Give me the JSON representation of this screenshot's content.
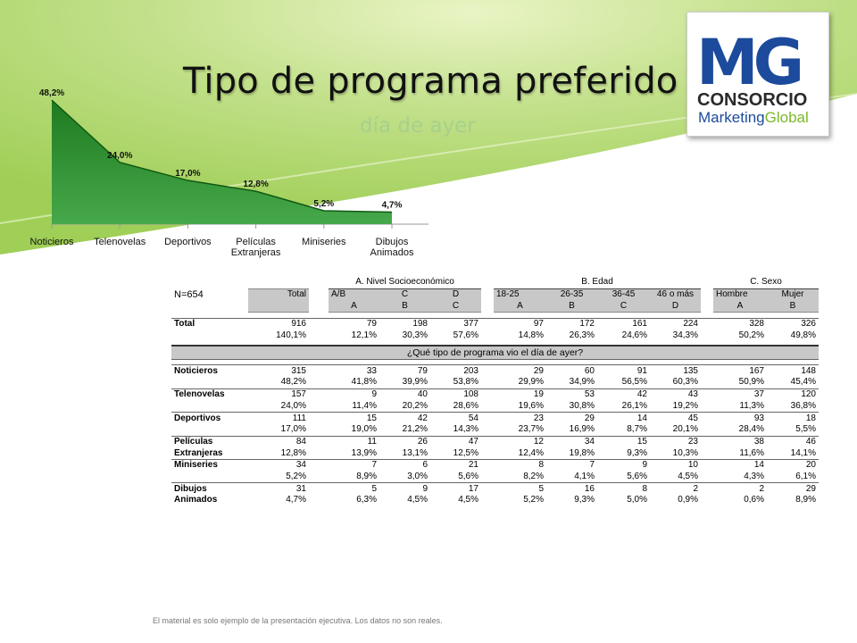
{
  "header": {
    "title": "Tipo de programa preferido",
    "subtitle": "día de ayer"
  },
  "logo": {
    "letters": "MG",
    "line1": "CONSORCIO",
    "line2a": "Marketing",
    "line2b": "Global",
    "colors": {
      "blue": "#1c4a9c",
      "green": "#7ab929",
      "dark": "#2a2a2a"
    }
  },
  "chart_data": {
    "type": "area",
    "categories": [
      "Noticieros",
      "Telenovelas",
      "Deportivos",
      "Películas Extranjeras",
      "Miniseries",
      "Dibujos Animados"
    ],
    "category_lines": [
      [
        "Noticieros"
      ],
      [
        "Telenovelas"
      ],
      [
        "Deportivos"
      ],
      [
        "Películas",
        "Extranjeras"
      ],
      [
        "Miniseries"
      ],
      [
        "Dibujos",
        "Animados"
      ]
    ],
    "values": [
      48.2,
      24.0,
      17.0,
      12.8,
      5.2,
      4.7
    ],
    "data_labels": [
      "48,2%",
      "24,0%",
      "17,0%",
      "12,8%",
      "5,2%",
      "4,7%"
    ],
    "title": "",
    "xlabel": "",
    "ylabel": "",
    "ylim": [
      0,
      50
    ],
    "grid": false,
    "colors": {
      "fill_dark": "#1f7a1f",
      "fill_light": "#46a84b",
      "axis": "#999999"
    }
  },
  "table": {
    "n_label": "N=654",
    "groups": [
      "A. Nivel Socioeconómico",
      "B. Edad",
      "C. Sexo"
    ],
    "col_headers": [
      "Total",
      "A/B",
      "C",
      "D",
      "18-25",
      "26-35",
      "36-45",
      "46 o más",
      "Hombre",
      "Mujer"
    ],
    "col_letters": [
      "",
      "A",
      "B",
      "C",
      "A",
      "B",
      "C",
      "D",
      "A",
      "B"
    ],
    "question": "¿Qué tipo de programa vio el día de ayer?",
    "total_row": {
      "label": "Total",
      "counts": [
        "916",
        "79",
        "198",
        "377",
        "97",
        "172",
        "161",
        "224",
        "328",
        "326"
      ],
      "pcts": [
        "140,1%",
        "12,1%",
        "30,3%",
        "57,6%",
        "14,8%",
        "26,3%",
        "24,6%",
        "34,3%",
        "50,2%",
        "49,8%"
      ]
    },
    "rows": [
      {
        "label1": "Noticieros",
        "label2": "",
        "counts": [
          "315",
          "33",
          "79",
          "203",
          "29",
          "60",
          "91",
          "135",
          "167",
          "148"
        ],
        "pcts": [
          "48,2%",
          "41,8%",
          "39,9%",
          "53,8%",
          "29,9%",
          "34,9%",
          "56,5%",
          "60,3%",
          "50,9%",
          "45,4%"
        ]
      },
      {
        "label1": "Telenovelas",
        "label2": "",
        "counts": [
          "157",
          "9",
          "40",
          "108",
          "19",
          "53",
          "42",
          "43",
          "37",
          "120"
        ],
        "pcts": [
          "24,0%",
          "11,4%",
          "20,2%",
          "28,6%",
          "19,6%",
          "30,8%",
          "26,1%",
          "19,2%",
          "11,3%",
          "36,8%"
        ]
      },
      {
        "label1": "Deportivos",
        "label2": "",
        "counts": [
          "111",
          "15",
          "42",
          "54",
          "23",
          "29",
          "14",
          "45",
          "93",
          "18"
        ],
        "pcts": [
          "17,0%",
          "19,0%",
          "21,2%",
          "14,3%",
          "23,7%",
          "16,9%",
          "8,7%",
          "20,1%",
          "28,4%",
          "5,5%"
        ]
      },
      {
        "label1": "Películas",
        "label2": "Extranjeras",
        "counts": [
          "84",
          "11",
          "26",
          "47",
          "12",
          "34",
          "15",
          "23",
          "38",
          "46"
        ],
        "pcts": [
          "12,8%",
          "13,9%",
          "13,1%",
          "12,5%",
          "12,4%",
          "19,8%",
          "9,3%",
          "10,3%",
          "11,6%",
          "14,1%"
        ]
      },
      {
        "label1": "Miniseries",
        "label2": "",
        "counts": [
          "34",
          "7",
          "6",
          "21",
          "8",
          "7",
          "9",
          "10",
          "14",
          "20"
        ],
        "pcts": [
          "5,2%",
          "8,9%",
          "3,0%",
          "5,6%",
          "8,2%",
          "4,1%",
          "5,6%",
          "4,5%",
          "4,3%",
          "6,1%"
        ]
      },
      {
        "label1": "Dibujos",
        "label2": "Animados",
        "counts": [
          "31",
          "5",
          "9",
          "17",
          "5",
          "16",
          "8",
          "2",
          "2",
          "29"
        ],
        "pcts": [
          "4,7%",
          "6,3%",
          "4,5%",
          "4,5%",
          "5,2%",
          "9,3%",
          "5,0%",
          "0,9%",
          "0,6%",
          "8,9%"
        ]
      }
    ]
  },
  "footer": "El material es solo ejemplo de la presentación ejecutiva. Los datos no son reales."
}
